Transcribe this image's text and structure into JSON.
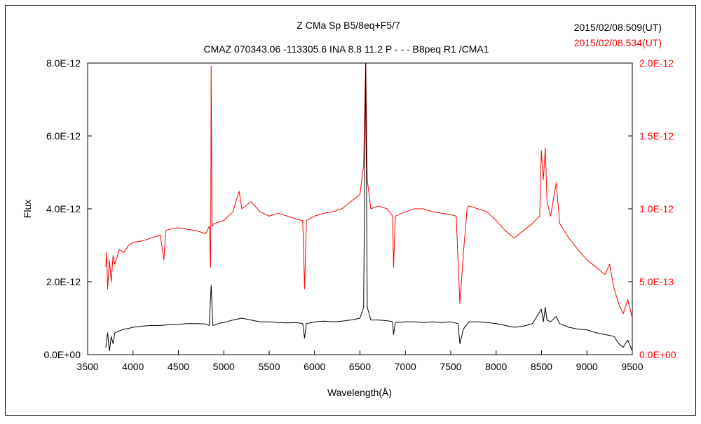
{
  "chart_data": {
    "type": "line",
    "title": "Z CMa    Sp B5/8eq+F5/7",
    "subtitle": "CMAZ 070343.06 -113305.6 INA 8.8 11.2 P - - - B8peq R1 /CMA1",
    "xlabel": "Wavelength(Å)",
    "ylabel": "Flux",
    "xlim": [
      3500,
      9500
    ],
    "x_ticks": [
      "3500",
      "4000",
      "4500",
      "5000",
      "5500",
      "6000",
      "6500",
      "7000",
      "7500",
      "8000",
      "8500",
      "9000",
      "9500"
    ],
    "ylim_left": [
      0,
      8e-12
    ],
    "y_ticks_left": [
      "0.0E+00",
      "2.0E-12",
      "4.0E-12",
      "6.0E-12",
      "8.0E-12"
    ],
    "ylim_right": [
      0,
      2e-12
    ],
    "y_ticks_right": [
      "0.0E+00",
      "5.0E-13",
      "1.0E-12",
      "1.5E-12",
      "2.0E-12"
    ],
    "grid": false,
    "legend_position": "top-right",
    "colors": {
      "black_series": "#000000",
      "red_series": "#ff0000",
      "frame": "#000000"
    },
    "series": [
      {
        "name": "2015/02/08.509(UT)",
        "axis": "left",
        "color": "#000000",
        "points": [
          [
            3700,
            2e-13
          ],
          [
            3720,
            6e-13
          ],
          [
            3740,
            1e-13
          ],
          [
            3760,
            5e-13
          ],
          [
            3780,
            3e-13
          ],
          [
            3800,
            6e-13
          ],
          [
            3850,
            6.5e-13
          ],
          [
            3900,
            7e-13
          ],
          [
            3950,
            7.2e-13
          ],
          [
            4000,
            7.5e-13
          ],
          [
            4100,
            7.8e-13
          ],
          [
            4200,
            8e-13
          ],
          [
            4300,
            8e-13
          ],
          [
            4400,
            8.2e-13
          ],
          [
            4500,
            8.3e-13
          ],
          [
            4600,
            8.5e-13
          ],
          [
            4700,
            8.5e-13
          ],
          [
            4800,
            8.4e-13
          ],
          [
            4840,
            8e-13
          ],
          [
            4861,
            1.9e-12
          ],
          [
            4880,
            8e-13
          ],
          [
            4950,
            8.6e-13
          ],
          [
            5000,
            8.8e-13
          ],
          [
            5100,
            9.5e-13
          ],
          [
            5200,
            1e-12
          ],
          [
            5300,
            9.5e-13
          ],
          [
            5400,
            9e-13
          ],
          [
            5500,
            9e-13
          ],
          [
            5600,
            8.8e-13
          ],
          [
            5700,
            8.7e-13
          ],
          [
            5800,
            8.8e-13
          ],
          [
            5870,
            8.5e-13
          ],
          [
            5890,
            4.5e-13
          ],
          [
            5910,
            8.5e-13
          ],
          [
            6000,
            9e-13
          ],
          [
            6100,
            9.2e-13
          ],
          [
            6200,
            9e-13
          ],
          [
            6300,
            9.2e-13
          ],
          [
            6400,
            9.5e-13
          ],
          [
            6500,
            1e-12
          ],
          [
            6540,
            1.3e-12
          ],
          [
            6563,
            8e-12
          ],
          [
            6580,
            1.3e-12
          ],
          [
            6620,
            9.5e-13
          ],
          [
            6700,
            9.5e-13
          ],
          [
            6800,
            9.3e-13
          ],
          [
            6860,
            9e-13
          ],
          [
            6870,
            5.5e-13
          ],
          [
            6890,
            8.8e-13
          ],
          [
            7000,
            9e-13
          ],
          [
            7100,
            9e-13
          ],
          [
            7200,
            8.8e-13
          ],
          [
            7300,
            9e-13
          ],
          [
            7400,
            8.8e-13
          ],
          [
            7500,
            9e-13
          ],
          [
            7580,
            8.5e-13
          ],
          [
            7600,
            3e-13
          ],
          [
            7640,
            7e-13
          ],
          [
            7700,
            9e-13
          ],
          [
            7800,
            9e-13
          ],
          [
            7900,
            8.8e-13
          ],
          [
            8000,
            8.5e-13
          ],
          [
            8100,
            8e-13
          ],
          [
            8200,
            7.5e-13
          ],
          [
            8300,
            7.8e-13
          ],
          [
            8400,
            8.5e-13
          ],
          [
            8498,
            1.25e-12
          ],
          [
            8520,
            9e-13
          ],
          [
            8542,
            1.3e-12
          ],
          [
            8560,
            9.5e-13
          ],
          [
            8600,
            9e-13
          ],
          [
            8662,
            1.05e-12
          ],
          [
            8700,
            8.5e-13
          ],
          [
            8800,
            7.5e-13
          ],
          [
            8900,
            7e-13
          ],
          [
            9000,
            6.8e-13
          ],
          [
            9100,
            6e-13
          ],
          [
            9200,
            5.5e-13
          ],
          [
            9300,
            5e-13
          ],
          [
            9350,
            3e-13
          ],
          [
            9400,
            2e-13
          ],
          [
            9450,
            4e-13
          ],
          [
            9500,
            1e-13
          ]
        ]
      },
      {
        "name": "2015/02/08.534(UT)",
        "axis": "right",
        "color": "#ff0000",
        "points": [
          [
            3700,
            6e-13
          ],
          [
            3710,
            7e-13
          ],
          [
            3720,
            4.5e-13
          ],
          [
            3740,
            6.5e-13
          ],
          [
            3760,
            5e-13
          ],
          [
            3780,
            6.8e-13
          ],
          [
            3800,
            6.2e-13
          ],
          [
            3850,
            7.2e-13
          ],
          [
            3900,
            7e-13
          ],
          [
            3950,
            7.5e-13
          ],
          [
            4000,
            7.7e-13
          ],
          [
            4100,
            7.8e-13
          ],
          [
            4200,
            8e-13
          ],
          [
            4300,
            8.2e-13
          ],
          [
            4340,
            6.5e-13
          ],
          [
            4360,
            8.5e-13
          ],
          [
            4400,
            8.6e-13
          ],
          [
            4500,
            8.7e-13
          ],
          [
            4600,
            8.6e-13
          ],
          [
            4700,
            8.5e-13
          ],
          [
            4800,
            8.3e-13
          ],
          [
            4840,
            8.8e-13
          ],
          [
            4855,
            6e-13
          ],
          [
            4861,
            1.98e-12
          ],
          [
            4870,
            8.8e-13
          ],
          [
            4900,
            9e-13
          ],
          [
            5000,
            9.2e-13
          ],
          [
            5100,
            9.8e-13
          ],
          [
            5169,
            1.12e-12
          ],
          [
            5200,
            1e-12
          ],
          [
            5300,
            1.05e-12
          ],
          [
            5400,
            9.8e-13
          ],
          [
            5500,
            9.5e-13
          ],
          [
            5600,
            9.7e-13
          ],
          [
            5700,
            9.5e-13
          ],
          [
            5800,
            9.3e-13
          ],
          [
            5870,
            9.2e-13
          ],
          [
            5890,
            4.5e-13
          ],
          [
            5910,
            9.2e-13
          ],
          [
            6000,
            9.5e-13
          ],
          [
            6100,
            9.7e-13
          ],
          [
            6200,
            9.8e-13
          ],
          [
            6300,
            1e-12
          ],
          [
            6400,
            1.05e-12
          ],
          [
            6500,
            1.1e-12
          ],
          [
            6540,
            1.3e-12
          ],
          [
            6563,
            2e-12
          ],
          [
            6580,
            1.2e-12
          ],
          [
            6620,
            1e-12
          ],
          [
            6700,
            1.02e-12
          ],
          [
            6800,
            1e-12
          ],
          [
            6860,
            9.5e-13
          ],
          [
            6870,
            6e-13
          ],
          [
            6890,
            9.5e-13
          ],
          [
            7000,
            9.8e-13
          ],
          [
            7100,
            1e-12
          ],
          [
            7200,
            1e-12
          ],
          [
            7300,
            9.8e-13
          ],
          [
            7400,
            9.7e-13
          ],
          [
            7500,
            9.6e-13
          ],
          [
            7560,
            9.5e-13
          ],
          [
            7600,
            3.5e-13
          ],
          [
            7640,
            7e-13
          ],
          [
            7680,
            1e-12
          ],
          [
            7700,
            1.02e-12
          ],
          [
            7800,
            1e-12
          ],
          [
            7900,
            9.8e-13
          ],
          [
            8000,
            9.2e-13
          ],
          [
            8100,
            8.5e-13
          ],
          [
            8200,
            8e-13
          ],
          [
            8300,
            8.5e-13
          ],
          [
            8400,
            9e-13
          ],
          [
            8480,
            9.5e-13
          ],
          [
            8498,
            1.4e-12
          ],
          [
            8520,
            1.2e-12
          ],
          [
            8542,
            1.42e-12
          ],
          [
            8560,
            1.05e-12
          ],
          [
            8600,
            9.5e-13
          ],
          [
            8662,
            1.18e-12
          ],
          [
            8700,
            9e-13
          ],
          [
            8800,
            8e-13
          ],
          [
            8900,
            7.2e-13
          ],
          [
            9000,
            6.5e-13
          ],
          [
            9100,
            6e-13
          ],
          [
            9200,
            5.5e-13
          ],
          [
            9250,
            6.2e-13
          ],
          [
            9300,
            4.5e-13
          ],
          [
            9350,
            3.5e-13
          ],
          [
            9400,
            2.8e-13
          ],
          [
            9450,
            3.8e-13
          ],
          [
            9500,
            2.5e-13
          ]
        ]
      }
    ]
  }
}
